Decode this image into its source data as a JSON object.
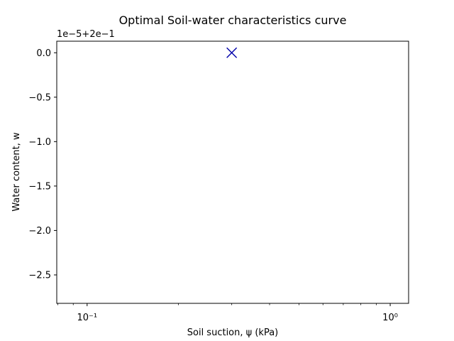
{
  "chart_data": {
    "type": "scatter",
    "title": "Optimal Soil-water characteristics curve",
    "xlabel": "Soil suction, ψ (kPa)",
    "ylabel": "Water content, w",
    "x_scale": "log",
    "xlim": [
      0.0794,
      1.15
    ],
    "ylim": [
      -2.82,
      0.13
    ],
    "y_offset_label": "1e−5+2e−1",
    "x_ticks": [
      {
        "value": 0.1,
        "label": "10⁻¹"
      },
      {
        "value": 1,
        "label": "10⁰"
      }
    ],
    "y_ticks": [
      {
        "value": 0.0,
        "label": "0.0"
      },
      {
        "value": -0.5,
        "label": "−0.5"
      },
      {
        "value": -1.0,
        "label": "−1.0"
      },
      {
        "value": -1.5,
        "label": "−1.5"
      },
      {
        "value": -2.0,
        "label": "−2.0"
      },
      {
        "value": -2.5,
        "label": "−2.5"
      }
    ],
    "series": [
      {
        "marker": "x",
        "color": "#0000aa",
        "points": [
          {
            "x": 0.3,
            "y": 0.0
          }
        ]
      }
    ],
    "grid": false
  }
}
